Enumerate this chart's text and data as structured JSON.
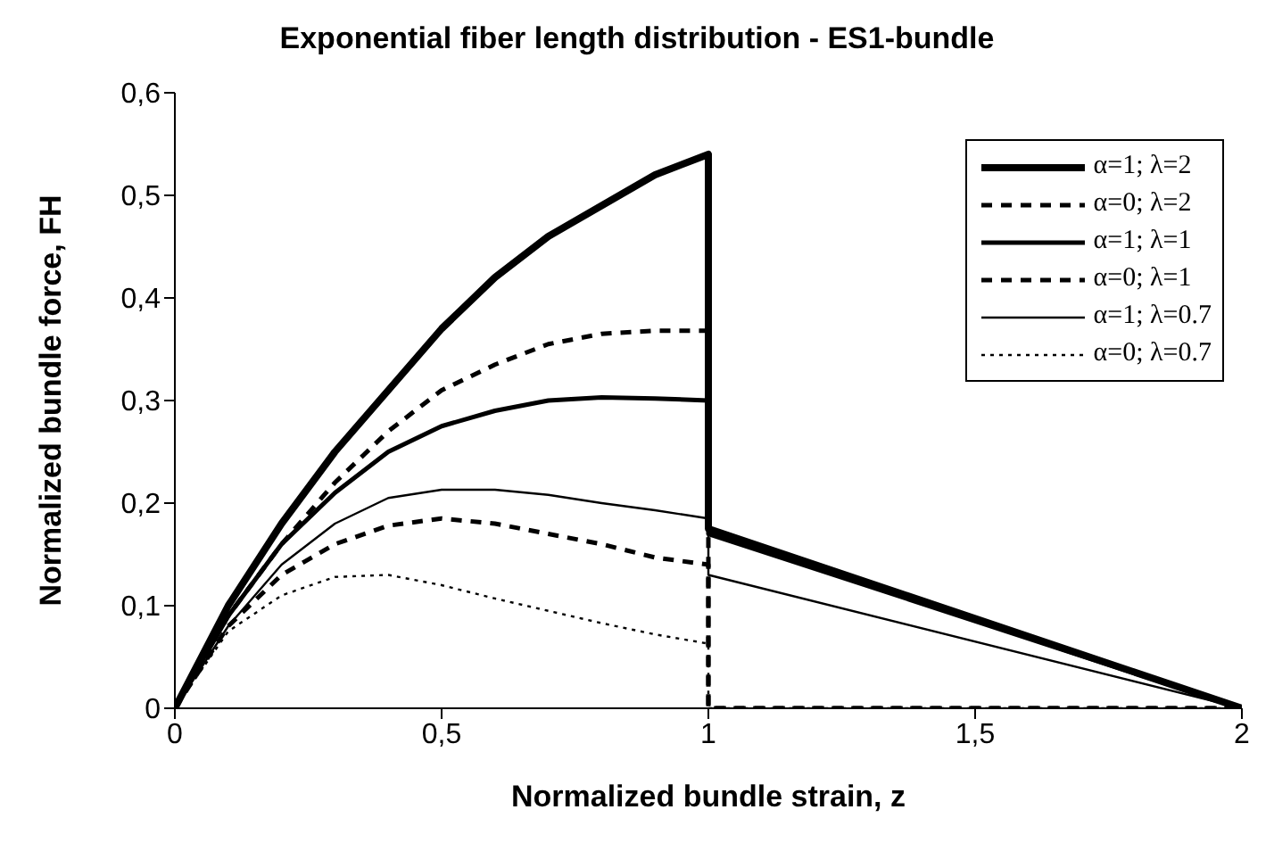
{
  "chart_data": {
    "type": "line",
    "title": "Exponential fiber length distribution - ES1-bundle",
    "xlabel": "Normalized bundle strain, z",
    "ylabel": "Normalized bundle force, FH",
    "xlim": [
      0,
      2
    ],
    "xticks": [
      0,
      {
        "value": 0.5,
        "label": "0,5"
      },
      1,
      {
        "value": 1.5,
        "label": "1,5"
      },
      2
    ],
    "ylim": [
      0,
      0.6
    ],
    "yticks": [
      0,
      {
        "value": 0.1,
        "label": "0,1"
      },
      {
        "value": 0.2,
        "label": "0,2"
      },
      {
        "value": 0.3,
        "label": "0,3"
      },
      {
        "value": 0.4,
        "label": "0,4"
      },
      {
        "value": 0.5,
        "label": "0,5"
      },
      {
        "value": 0.6,
        "label": "0,6"
      }
    ],
    "grid": false,
    "legend": "top right",
    "marker": "none",
    "series": [
      {
        "name": "α=1; λ=2",
        "color": "#000000",
        "line_style": "solid",
        "x": [
          0,
          0.1,
          0.2,
          0.3,
          0.4,
          0.5,
          0.6,
          0.7,
          0.8,
          0.9,
          1,
          1,
          2
        ],
        "values": [
          0,
          0.1,
          0.18,
          0.25,
          0.31,
          0.37,
          0.42,
          0.46,
          0.49,
          0.52,
          0.54,
          0.175,
          0
        ]
      },
      {
        "name": "α=0; λ=2",
        "color": "#000000",
        "line_style": "dashed",
        "x": [
          0,
          0.1,
          0.2,
          0.3,
          0.4,
          0.5,
          0.6,
          0.7,
          0.8,
          0.9,
          1,
          1,
          2
        ],
        "values": [
          0,
          0.09,
          0.16,
          0.22,
          0.27,
          0.31,
          0.335,
          0.355,
          0.365,
          0.368,
          0.368,
          0,
          0
        ]
      },
      {
        "name": "α=1; λ=1",
        "color": "#000000",
        "line_style": "solid",
        "x": [
          0,
          0.1,
          0.2,
          0.3,
          0.4,
          0.5,
          0.6,
          0.7,
          0.8,
          0.9,
          1,
          1,
          2
        ],
        "values": [
          0,
          0.09,
          0.16,
          0.21,
          0.25,
          0.275,
          0.29,
          0.3,
          0.303,
          0.302,
          0.3,
          0.17,
          0
        ]
      },
      {
        "name": "α=0; λ=1",
        "color": "#000000",
        "line_style": "dashed",
        "x": [
          0,
          0.1,
          0.2,
          0.3,
          0.4,
          0.5,
          0.6,
          0.7,
          0.8,
          0.9,
          1,
          1,
          2
        ],
        "values": [
          0,
          0.08,
          0.13,
          0.16,
          0.178,
          0.185,
          0.18,
          0.17,
          0.16,
          0.147,
          0.14,
          0,
          0
        ]
      },
      {
        "name": "α=1; λ=0.7",
        "color": "#000000",
        "line_style": "solid",
        "x": [
          0,
          0.1,
          0.2,
          0.3,
          0.4,
          0.5,
          0.6,
          0.7,
          0.8,
          0.9,
          1,
          1,
          2
        ],
        "values": [
          0,
          0.08,
          0.14,
          0.18,
          0.205,
          0.213,
          0.213,
          0.208,
          0.2,
          0.193,
          0.185,
          0.13,
          0
        ]
      },
      {
        "name": "α=0; λ=0.7",
        "color": "#000000",
        "line_style": "dotted",
        "x": [
          0,
          0.1,
          0.2,
          0.3,
          0.4,
          0.5,
          0.6,
          0.7,
          0.8,
          0.9,
          1,
          1,
          2
        ],
        "values": [
          0,
          0.075,
          0.11,
          0.128,
          0.13,
          0.12,
          0.107,
          0.095,
          0.083,
          0.072,
          0.063,
          0,
          0
        ]
      }
    ]
  }
}
